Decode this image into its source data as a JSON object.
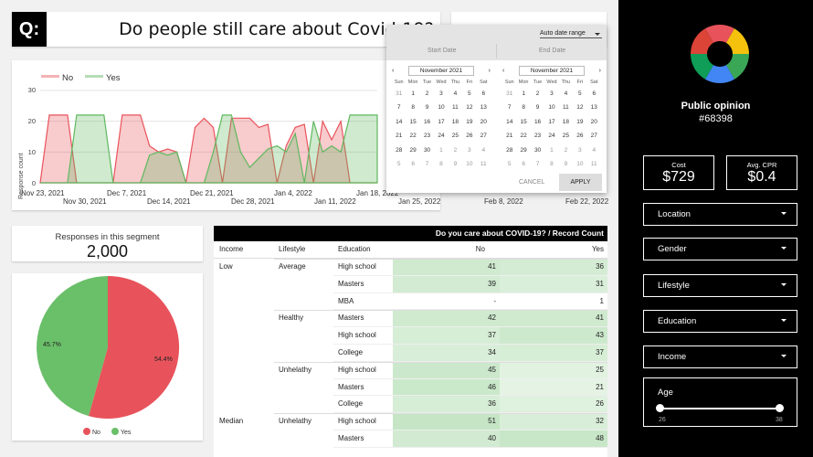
{
  "header": {
    "logo": "Q:",
    "title": "Do people still care about Covid-19?"
  },
  "timeline": {
    "type": "area",
    "legend": [
      "No",
      "Yes"
    ],
    "ylabel": "Response count",
    "yticks": [
      "30",
      "20",
      "10",
      "0"
    ],
    "xticks_top": [
      "Nov 23, 2021",
      "Dec 7, 2021",
      "Dec 21, 2021",
      "Jan 4, 2022",
      "Jan 18, 2022"
    ],
    "xticks_bottom": [
      "Nov 30, 2021",
      "Dec 14, 2021",
      "Dec 28, 2021",
      "Jan 11, 2022",
      "Jan 25, 2022",
      "Feb 8, 2022",
      "Feb 22, 2022"
    ],
    "colors": {
      "no": "#e8535b",
      "yes": "#5fb85f"
    }
  },
  "chart_data": {
    "type": "area",
    "title": "",
    "xlabel": "",
    "ylabel": "Response count",
    "ylim": [
      0,
      30
    ],
    "series": [
      {
        "name": "No",
        "values": [
          0,
          22,
          22,
          22,
          0,
          0,
          0,
          0,
          0,
          22,
          22,
          22,
          12,
          10,
          11,
          10,
          0,
          18,
          21,
          18,
          0,
          21,
          21,
          21,
          18,
          19,
          0,
          12,
          18,
          19,
          0,
          20,
          14,
          20,
          0,
          0,
          0,
          0
        ]
      },
      {
        "name": "Yes",
        "values": [
          0,
          0,
          0,
          0,
          22,
          22,
          22,
          22,
          0,
          0,
          0,
          0,
          9,
          10,
          9,
          10,
          0,
          0,
          0,
          10,
          22,
          22,
          10,
          5,
          8,
          11,
          12,
          10,
          16,
          0,
          20,
          10,
          12,
          10,
          22,
          22,
          22,
          22
        ]
      }
    ]
  },
  "datepicker": {
    "range_select": "Auto date range",
    "start_placeholder": "Start Date",
    "end_placeholder": "End Date",
    "left_month": "November 2021",
    "right_month": "November 2021",
    "dow": [
      "Sun",
      "Mon",
      "Tue",
      "Wed",
      "Thu",
      "Fri",
      "Sat"
    ],
    "weeks": [
      [
        "31",
        "1",
        "2",
        "3",
        "4",
        "5",
        "6"
      ],
      [
        "7",
        "8",
        "9",
        "10",
        "11",
        "12",
        "13"
      ],
      [
        "14",
        "15",
        "16",
        "17",
        "18",
        "19",
        "20"
      ],
      [
        "21",
        "22",
        "23",
        "24",
        "25",
        "26",
        "27"
      ],
      [
        "28",
        "29",
        "30",
        "1",
        "2",
        "3",
        "4"
      ],
      [
        "5",
        "6",
        "7",
        "8",
        "9",
        "10",
        "11"
      ]
    ],
    "cancel": "CANCEL",
    "apply": "APPLY"
  },
  "segment": {
    "label": "Responses in this segment",
    "value": "2,000"
  },
  "pie": {
    "type": "pie",
    "slices": [
      {
        "name": "No",
        "value": 54.4,
        "label": "54.4%",
        "color": "#e8535b"
      },
      {
        "name": "Yes",
        "value": 45.7,
        "label": "45.7%",
        "color": "#6abf69"
      }
    ],
    "legend": [
      "No",
      "Yes"
    ]
  },
  "table": {
    "header": "Do you care about COVID-19? / Record Count",
    "columns": [
      "Income",
      "Lifestyle",
      "Education",
      "No",
      "Yes"
    ],
    "rows": [
      {
        "income": "Low",
        "lifestyle": "Average",
        "education": "High school",
        "no": "41",
        "yes": "36",
        "no_level": 0.72,
        "yes_level": 0.62
      },
      {
        "income": "",
        "lifestyle": "",
        "education": "Masters",
        "no": "39",
        "yes": "31",
        "no_level": 0.66,
        "yes_level": 0.5
      },
      {
        "income": "",
        "lifestyle": "",
        "education": "MBA",
        "no": "-",
        "yes": "1",
        "no_level": 0,
        "yes_level": 0
      },
      {
        "income": "",
        "lifestyle": "Healthy",
        "education": "Masters",
        "no": "42",
        "yes": "41",
        "no_level": 0.74,
        "yes_level": 0.72
      },
      {
        "income": "",
        "lifestyle": "",
        "education": "High school",
        "no": "37",
        "yes": "43",
        "no_level": 0.6,
        "yes_level": 0.76
      },
      {
        "income": "",
        "lifestyle": "",
        "education": "College",
        "no": "34",
        "yes": "37",
        "no_level": 0.54,
        "yes_level": 0.6
      },
      {
        "income": "",
        "lifestyle": "Unhelathy",
        "education": "High school",
        "no": "45",
        "yes": "25",
        "no_level": 0.8,
        "yes_level": 0.38
      },
      {
        "income": "",
        "lifestyle": "",
        "education": "Masters",
        "no": "46",
        "yes": "21",
        "no_level": 0.82,
        "yes_level": 0.3
      },
      {
        "income": "",
        "lifestyle": "",
        "education": "College",
        "no": "36",
        "yes": "26",
        "no_level": 0.6,
        "yes_level": 0.4
      },
      {
        "income": "Median",
        "lifestyle": "Unhelathy",
        "education": "High school",
        "no": "51",
        "yes": "32",
        "no_level": 0.92,
        "yes_level": 0.52
      },
      {
        "income": "",
        "lifestyle": "",
        "education": "Masters",
        "no": "40",
        "yes": "48",
        "no_level": 0.7,
        "yes_level": 0.86
      }
    ]
  },
  "sidebar": {
    "title": "Public opinion",
    "id": "#68398",
    "cost_label": "Cost",
    "cost_value": "$729",
    "cpr_label": "Avg. CPR",
    "cpr_value": "$0.4",
    "filters": [
      "Location",
      "Gender",
      "Lifestyle",
      "Education",
      "Income"
    ],
    "age_label": "Age",
    "age_min": "26",
    "age_max": "38",
    "ring_colors": [
      "#e8535b",
      "#f4c20d",
      "#3aa757",
      "#4285f4",
      "#0f9d58",
      "#db4437"
    ]
  }
}
